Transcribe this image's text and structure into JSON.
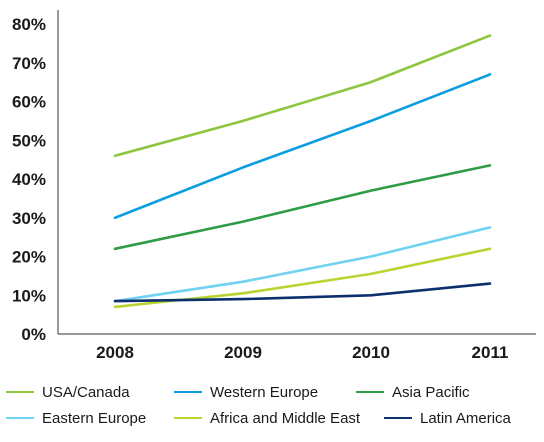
{
  "chart_data": {
    "type": "line",
    "categories": [
      "2008",
      "2009",
      "2010",
      "2011"
    ],
    "ylim": [
      0,
      80
    ],
    "yticks": [
      "0%",
      "10%",
      "20%",
      "30%",
      "40%",
      "50%",
      "60%",
      "70%",
      "80%"
    ],
    "grid": false,
    "legend_position": "bottom",
    "series": [
      {
        "name": "USA/Canada",
        "color": "#8cc63f",
        "values": [
          46,
          55,
          65,
          77
        ]
      },
      {
        "name": "Western Europe",
        "color": "#0a9ee0",
        "values": [
          30,
          43,
          55,
          67
        ]
      },
      {
        "name": "Asia Pacific",
        "color": "#2e9b45",
        "values": [
          22,
          29,
          37,
          43.5
        ]
      },
      {
        "name": "Eastern Europe",
        "color": "#6fd2f2",
        "values": [
          8.5,
          13.5,
          20,
          27.5
        ]
      },
      {
        "name": "Africa and Middle East",
        "color": "#b8d430",
        "values": [
          7,
          10.5,
          15.5,
          22
        ]
      },
      {
        "name": "Latin America",
        "color": "#0d2f6e",
        "values": [
          8.5,
          9,
          10,
          13
        ]
      }
    ]
  }
}
